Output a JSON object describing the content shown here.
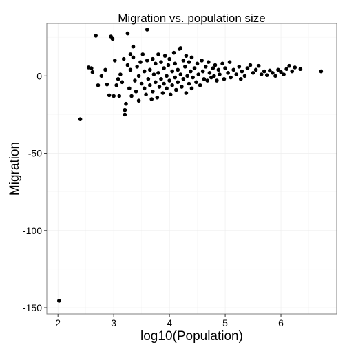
{
  "chart_data": {
    "type": "scatter",
    "title": "Migration vs. population size",
    "xlabel": "log10(Population)",
    "ylabel": "Migration",
    "xlim": [
      1.8,
      7.0
    ],
    "ylim": [
      -154,
      34
    ],
    "x_ticks": [
      2,
      3,
      4,
      5,
      6
    ],
    "y_ticks": [
      -150,
      -100,
      -50,
      0
    ],
    "grid": true,
    "legend": "none",
    "point_color": "#000000",
    "points": [
      {
        "x": 2.02,
        "y": -145.5
      },
      {
        "x": 2.4,
        "y": -28.0
      },
      {
        "x": 2.55,
        "y": 5.5
      },
      {
        "x": 2.6,
        "y": 5.0
      },
      {
        "x": 2.62,
        "y": 2.5
      },
      {
        "x": 2.68,
        "y": 26.0
      },
      {
        "x": 2.72,
        "y": -6.0
      },
      {
        "x": 2.78,
        "y": 0.0
      },
      {
        "x": 2.85,
        "y": 4.0
      },
      {
        "x": 2.88,
        "y": -5.5
      },
      {
        "x": 2.92,
        "y": -12.5
      },
      {
        "x": 2.95,
        "y": 25.5
      },
      {
        "x": 2.98,
        "y": 24.0
      },
      {
        "x": 3.0,
        "y": -13.0
      },
      {
        "x": 3.02,
        "y": 10.0
      },
      {
        "x": 3.05,
        "y": -6.0
      },
      {
        "x": 3.08,
        "y": -2.0
      },
      {
        "x": 3.1,
        "y": -13.0
      },
      {
        "x": 3.12,
        "y": 1.0
      },
      {
        "x": 3.15,
        "y": -4.0
      },
      {
        "x": 3.18,
        "y": 11.0
      },
      {
        "x": 3.2,
        "y": -25.0
      },
      {
        "x": 3.2,
        "y": -22.0
      },
      {
        "x": 3.22,
        "y": -18.0
      },
      {
        "x": 3.25,
        "y": 27.5
      },
      {
        "x": 3.25,
        "y": 7.0
      },
      {
        "x": 3.28,
        "y": -8.0
      },
      {
        "x": 3.3,
        "y": 14.0
      },
      {
        "x": 3.3,
        "y": 4.0
      },
      {
        "x": 3.32,
        "y": -13.0
      },
      {
        "x": 3.35,
        "y": 19.0
      },
      {
        "x": 3.35,
        "y": 12.0
      },
      {
        "x": 3.38,
        "y": -3.0
      },
      {
        "x": 3.4,
        "y": -10.0
      },
      {
        "x": 3.42,
        "y": 6.0
      },
      {
        "x": 3.45,
        "y": 0.0
      },
      {
        "x": 3.45,
        "y": -16.0
      },
      {
        "x": 3.48,
        "y": 9.0
      },
      {
        "x": 3.5,
        "y": -5.0
      },
      {
        "x": 3.52,
        "y": 14.0
      },
      {
        "x": 3.55,
        "y": -8.0
      },
      {
        "x": 3.55,
        "y": 3.0
      },
      {
        "x": 3.58,
        "y": -12.0
      },
      {
        "x": 3.6,
        "y": 30.0
      },
      {
        "x": 3.6,
        "y": 10.0
      },
      {
        "x": 3.62,
        "y": -2.0
      },
      {
        "x": 3.65,
        "y": -6.0
      },
      {
        "x": 3.65,
        "y": 4.0
      },
      {
        "x": 3.68,
        "y": -15.0
      },
      {
        "x": 3.7,
        "y": 11.0
      },
      {
        "x": 3.7,
        "y": -10.0
      },
      {
        "x": 3.72,
        "y": 1.0
      },
      {
        "x": 3.75,
        "y": -4.0
      },
      {
        "x": 3.75,
        "y": 8.0
      },
      {
        "x": 3.78,
        "y": -14.0
      },
      {
        "x": 3.8,
        "y": 14.0
      },
      {
        "x": 3.8,
        "y": 2.0
      },
      {
        "x": 3.82,
        "y": -7.0
      },
      {
        "x": 3.85,
        "y": 9.0
      },
      {
        "x": 3.85,
        "y": -2.0
      },
      {
        "x": 3.88,
        "y": -11.0
      },
      {
        "x": 3.9,
        "y": 5.0
      },
      {
        "x": 3.9,
        "y": -5.0
      },
      {
        "x": 3.92,
        "y": 13.0
      },
      {
        "x": 3.95,
        "y": 0.0
      },
      {
        "x": 3.95,
        "y": -8.0
      },
      {
        "x": 3.98,
        "y": 7.0
      },
      {
        "x": 4.0,
        "y": -3.0
      },
      {
        "x": 4.0,
        "y": 11.0
      },
      {
        "x": 4.02,
        "y": -12.0
      },
      {
        "x": 4.05,
        "y": 3.0
      },
      {
        "x": 4.05,
        "y": -6.0
      },
      {
        "x": 4.08,
        "y": 15.0
      },
      {
        "x": 4.1,
        "y": -1.0
      },
      {
        "x": 4.1,
        "y": 8.0
      },
      {
        "x": 4.12,
        "y": -9.0
      },
      {
        "x": 4.15,
        "y": 4.0
      },
      {
        "x": 4.15,
        "y": -4.0
      },
      {
        "x": 4.18,
        "y": 17.5
      },
      {
        "x": 4.2,
        "y": 18.0
      },
      {
        "x": 4.2,
        "y": 1.0
      },
      {
        "x": 4.22,
        "y": -7.0
      },
      {
        "x": 4.25,
        "y": 10.0
      },
      {
        "x": 4.25,
        "y": -2.0
      },
      {
        "x": 4.28,
        "y": 6.0
      },
      {
        "x": 4.3,
        "y": -11.0
      },
      {
        "x": 4.3,
        "y": 13.0
      },
      {
        "x": 4.32,
        "y": 0.0
      },
      {
        "x": 4.35,
        "y": -5.0
      },
      {
        "x": 4.35,
        "y": 9.0
      },
      {
        "x": 4.38,
        "y": 3.0
      },
      {
        "x": 4.4,
        "y": -8.0
      },
      {
        "x": 4.4,
        "y": 12.0
      },
      {
        "x": 4.42,
        "y": -1.0
      },
      {
        "x": 4.45,
        "y": 5.0
      },
      {
        "x": 4.48,
        "y": -4.0
      },
      {
        "x": 4.5,
        "y": 8.0
      },
      {
        "x": 4.52,
        "y": 1.0
      },
      {
        "x": 4.55,
        "y": -6.0
      },
      {
        "x": 4.58,
        "y": 10.0
      },
      {
        "x": 4.6,
        "y": 3.0
      },
      {
        "x": 4.62,
        "y": -2.0
      },
      {
        "x": 4.65,
        "y": 6.0
      },
      {
        "x": 4.68,
        "y": -3.0
      },
      {
        "x": 4.7,
        "y": 9.0
      },
      {
        "x": 4.72,
        "y": 2.0
      },
      {
        "x": 4.75,
        "y": -1.0
      },
      {
        "x": 4.78,
        "y": 5.0
      },
      {
        "x": 4.8,
        "y": 0.0
      },
      {
        "x": 4.82,
        "y": 7.0
      },
      {
        "x": 4.85,
        "y": -3.0
      },
      {
        "x": 4.88,
        "y": 4.0
      },
      {
        "x": 4.9,
        "y": 1.0
      },
      {
        "x": 4.95,
        "y": 8.0
      },
      {
        "x": 4.98,
        "y": -2.0
      },
      {
        "x": 5.0,
        "y": 5.0
      },
      {
        "x": 5.05,
        "y": 2.0
      },
      {
        "x": 5.08,
        "y": 9.0
      },
      {
        "x": 5.1,
        "y": -1.0
      },
      {
        "x": 5.15,
        "y": 4.0
      },
      {
        "x": 5.2,
        "y": 1.0
      },
      {
        "x": 5.25,
        "y": 6.0
      },
      {
        "x": 5.28,
        "y": -2.0
      },
      {
        "x": 5.3,
        "y": 3.0
      },
      {
        "x": 5.35,
        "y": 0.0
      },
      {
        "x": 5.4,
        "y": 5.0
      },
      {
        "x": 5.45,
        "y": 7.0
      },
      {
        "x": 5.5,
        "y": 2.0
      },
      {
        "x": 5.55,
        "y": 4.0
      },
      {
        "x": 5.6,
        "y": 6.5
      },
      {
        "x": 5.65,
        "y": 1.0
      },
      {
        "x": 5.7,
        "y": 3.0
      },
      {
        "x": 5.75,
        "y": 0.5
      },
      {
        "x": 5.8,
        "y": 3.5
      },
      {
        "x": 5.85,
        "y": 2.0
      },
      {
        "x": 5.9,
        "y": 0.0
      },
      {
        "x": 5.95,
        "y": 4.0
      },
      {
        "x": 6.0,
        "y": 2.5
      },
      {
        "x": 6.05,
        "y": 1.0
      },
      {
        "x": 6.1,
        "y": 4.5
      },
      {
        "x": 6.15,
        "y": 6.5
      },
      {
        "x": 6.2,
        "y": 3.0
      },
      {
        "x": 6.25,
        "y": 5.5
      },
      {
        "x": 6.35,
        "y": 4.5
      },
      {
        "x": 6.72,
        "y": 3.0
      }
    ]
  }
}
